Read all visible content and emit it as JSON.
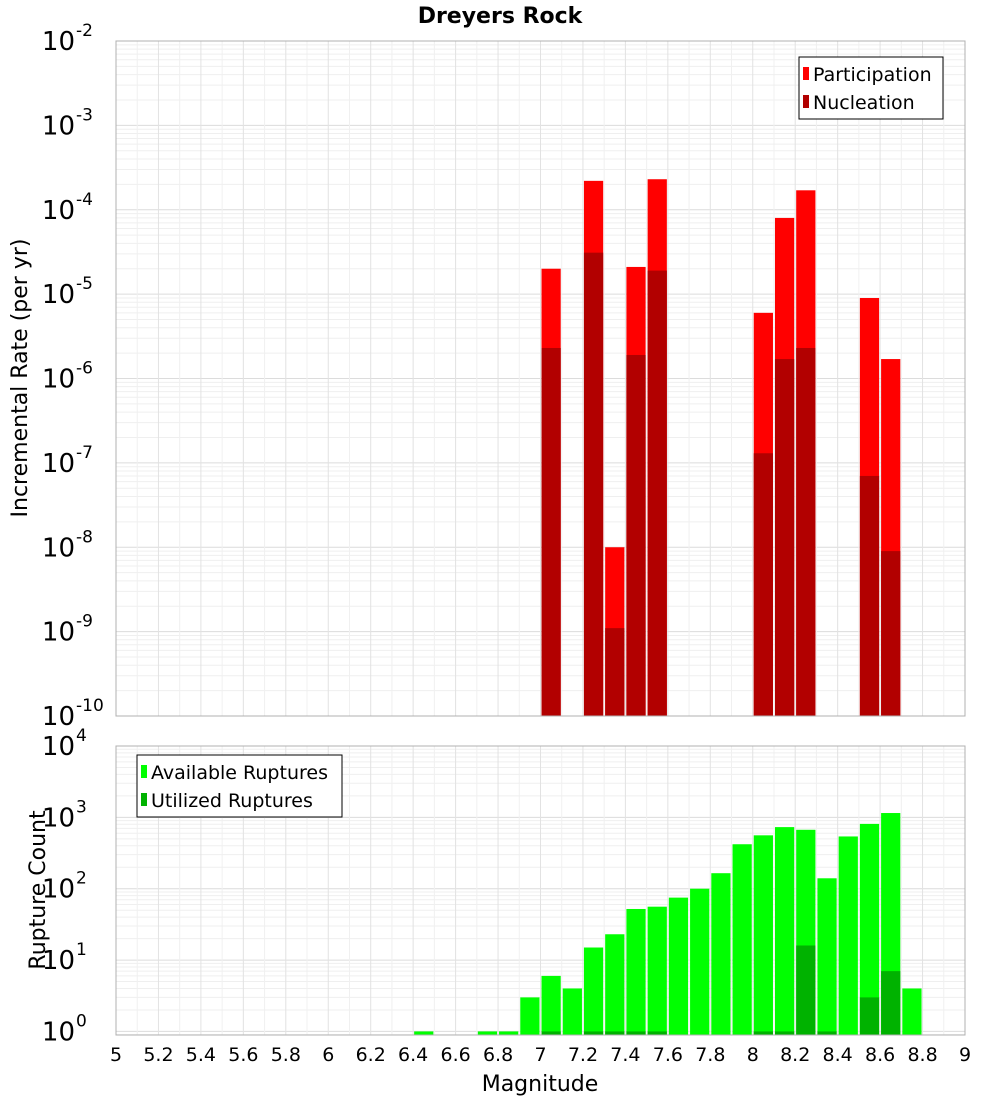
{
  "chart_data": [
    {
      "type": "bar",
      "title": "Dreyers Rock",
      "ylabel": "Incremental Rate (per yr)",
      "y_scale": "log",
      "ylim_exponents": [
        -10,
        -2
      ],
      "y_tick_exponents": [
        -10,
        -9,
        -8,
        -7,
        -6,
        -5,
        -4,
        -3,
        -2
      ],
      "legend_position": "top-right",
      "colors": {
        "Participation": "#ff0000",
        "Nucleation": "#b20000"
      },
      "series": [
        {
          "name": "Participation",
          "x": [
            7.05,
            7.25,
            7.35,
            7.45,
            7.55,
            8.05,
            8.15,
            8.25,
            8.55,
            8.65
          ],
          "values": [
            2e-05,
            0.00022,
            1e-08,
            2.1e-05,
            0.00023,
            6e-06,
            8e-05,
            0.00017,
            9e-06,
            1.7e-06
          ]
        },
        {
          "name": "Nucleation",
          "x": [
            7.05,
            7.25,
            7.35,
            7.45,
            7.55,
            8.05,
            8.15,
            8.25,
            8.55,
            8.65
          ],
          "values": [
            2.3e-06,
            3.1e-05,
            1.1e-09,
            1.9e-06,
            1.9e-05,
            1.3e-07,
            1.7e-06,
            2.3e-06,
            7e-08,
            9e-09
          ]
        }
      ]
    },
    {
      "type": "bar",
      "ylabel": "Rupture Count",
      "xlabel": "Magnitude",
      "y_scale": "log",
      "ylim_exponents": [
        -0.05,
        4
      ],
      "y_tick_exponents": [
        0,
        1,
        2,
        3,
        4
      ],
      "x_ticks": [
        "5",
        "5.2",
        "5.4",
        "5.6",
        "5.8",
        "6",
        "6.2",
        "6.4",
        "6.6",
        "6.8",
        "7",
        "7.2",
        "7.4",
        "7.6",
        "7.8",
        "8",
        "8.2",
        "8.4",
        "8.6",
        "8.8",
        "9"
      ],
      "xlim": [
        5,
        9
      ],
      "legend_position": "top-left",
      "colors": {
        "Available Ruptures": "#00ff00",
        "Utilized Ruptures": "#00b200"
      },
      "series": [
        {
          "name": "Available Ruptures",
          "x": [
            6.45,
            6.75,
            6.85,
            6.95,
            7.05,
            7.15,
            7.25,
            7.35,
            7.45,
            7.55,
            7.65,
            7.75,
            7.85,
            7.95,
            8.05,
            8.15,
            8.25,
            8.35,
            8.45,
            8.55,
            8.65,
            8.75
          ],
          "values": [
            1,
            1,
            1,
            3,
            6,
            4,
            15,
            23,
            52,
            56,
            75,
            100,
            165,
            420,
            560,
            730,
            670,
            140,
            540,
            810,
            1150,
            4
          ]
        },
        {
          "name": "Utilized Ruptures",
          "x": [
            7.05,
            7.25,
            7.35,
            7.45,
            7.55,
            8.05,
            8.15,
            8.25,
            8.35,
            8.55,
            8.65
          ],
          "values": [
            1,
            1,
            1,
            1,
            1,
            1,
            1,
            16,
            1,
            3,
            7
          ]
        }
      ]
    }
  ]
}
